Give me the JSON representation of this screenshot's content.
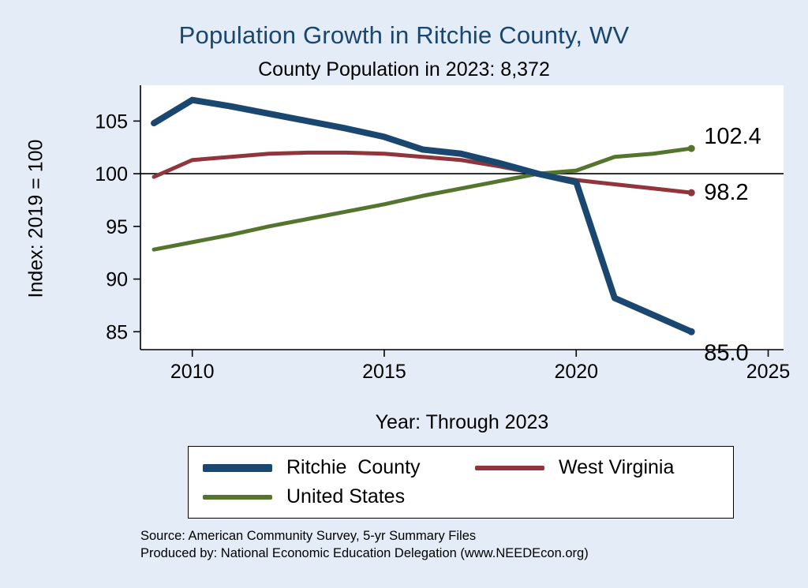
{
  "page": {
    "background": "#e3ecf7",
    "title": "Population Growth in Ritchie County, WV",
    "title_color": "#1a476f",
    "subtitle": "County Population in 2023: 8,372",
    "ylabel": "Index: 2019 = 100",
    "xlabel": "Year: Through 2023",
    "source_line1": "Source: American Community Survey, 5-yr Summary Files",
    "source_line2": "Produced by: National Economic Education Delegation (www.NEEDEcon.org)"
  },
  "chart_data": {
    "type": "line",
    "title": "Population Growth in Ritchie County, WV",
    "subtitle": "County Population in 2023: 8,372",
    "xlabel": "Year: Through 2023",
    "ylabel": "Index: 2019 = 100",
    "x": [
      2009,
      2010,
      2011,
      2012,
      2013,
      2014,
      2015,
      2016,
      2017,
      2018,
      2019,
      2020,
      2021,
      2022,
      2023
    ],
    "series": [
      {
        "name": "Ritchie  County",
        "color": "#1a476f",
        "values": [
          104.8,
          107.0,
          106.4,
          105.7,
          105.0,
          104.3,
          103.5,
          102.3,
          101.9,
          101.0,
          100.0,
          99.2,
          88.2,
          86.6,
          85.0
        ],
        "end_label": "85.0"
      },
      {
        "name": "West Virginia",
        "color": "#90353b",
        "values": [
          99.7,
          101.3,
          101.6,
          101.9,
          102.0,
          102.0,
          101.9,
          101.6,
          101.3,
          100.7,
          100.0,
          99.4,
          99.0,
          98.6,
          98.2
        ],
        "end_label": "98.2"
      },
      {
        "name": "United States",
        "color": "#55752f",
        "values": [
          92.8,
          93.5,
          94.2,
          95.0,
          95.7,
          96.4,
          97.1,
          97.9,
          98.6,
          99.3,
          100.0,
          100.3,
          101.6,
          101.9,
          102.4
        ],
        "end_label": "102.4"
      }
    ],
    "xticks": [
      2010,
      2015,
      2020,
      2025
    ],
    "yticks": [
      85,
      90,
      95,
      100,
      105
    ],
    "xlim": [
      2008.65,
      2025.4
    ],
    "ylim": [
      83.3,
      108.4
    ],
    "ref_line": 100,
    "grid": false,
    "legend_position": "bottom"
  }
}
